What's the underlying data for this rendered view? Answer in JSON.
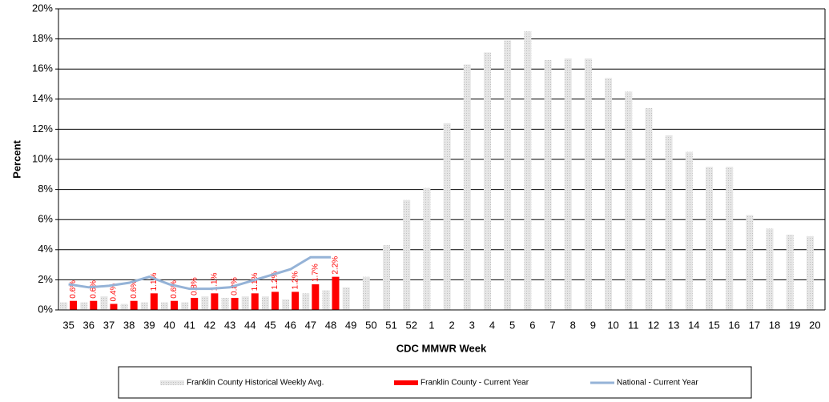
{
  "chart_data": {
    "type": "bar",
    "x_label": "CDC MMWR Week",
    "y_label": "Percent",
    "categories": [
      "35",
      "36",
      "37",
      "38",
      "39",
      "40",
      "41",
      "42",
      "43",
      "44",
      "45",
      "46",
      "47",
      "48",
      "49",
      "50",
      "51",
      "52",
      "1",
      "2",
      "3",
      "4",
      "5",
      "6",
      "7",
      "8",
      "9",
      "10",
      "11",
      "12",
      "13",
      "14",
      "15",
      "16",
      "17",
      "18",
      "19",
      "20"
    ],
    "series": [
      {
        "name": "Franklin County Historical Weekly Avg.",
        "type": "bar",
        "color": "#d4d4d4",
        "values": [
          0.5,
          0.5,
          0.9,
          0.4,
          0.5,
          0.5,
          0.5,
          0.9,
          0.8,
          0.9,
          0.9,
          0.7,
          1.1,
          1.3,
          1.5,
          2.2,
          4.3,
          7.3,
          8.1,
          12.4,
          16.3,
          17.1,
          17.9,
          18.5,
          16.6,
          16.7,
          16.7,
          15.4,
          14.5,
          13.4,
          11.6,
          10.5,
          9.5,
          9.5,
          6.3,
          5.4,
          5.0,
          4.9
        ]
      },
      {
        "name": "Franklin County - Current Year",
        "type": "bar",
        "color": "#ff0000",
        "values": [
          0.6,
          0.6,
          0.4,
          0.6,
          1.1,
          0.6,
          0.8,
          1.1,
          0.8,
          1.1,
          1.2,
          1.2,
          1.7,
          2.2,
          null,
          null,
          null,
          null,
          null,
          null,
          null,
          null,
          null,
          null,
          null,
          null,
          null,
          null,
          null,
          null,
          null,
          null,
          null,
          null,
          null,
          null,
          null,
          null
        ],
        "value_labels": [
          "0.6%",
          "0.6%",
          "0.4%",
          "0.6%",
          "1.1%",
          "0.6%",
          "0.8%",
          "1.1%",
          "0.8%",
          "1.1%",
          "1.2%",
          "1.2%",
          "1.7%",
          "2.2%",
          null,
          null,
          null,
          null,
          null,
          null,
          null,
          null,
          null,
          null,
          null,
          null,
          null,
          null,
          null,
          null,
          null,
          null,
          null,
          null,
          null,
          null,
          null,
          null
        ]
      },
      {
        "name": "National - Current Year",
        "type": "line",
        "color": "#95b3d7",
        "values": [
          1.7,
          1.5,
          1.6,
          1.8,
          2.2,
          1.7,
          1.4,
          1.4,
          1.5,
          1.9,
          2.3,
          2.7,
          3.5,
          3.5,
          null,
          null,
          null,
          null,
          null,
          null,
          null,
          null,
          null,
          null,
          null,
          null,
          null,
          null,
          null,
          null,
          null,
          null,
          null,
          null,
          null,
          null,
          null,
          null
        ]
      }
    ],
    "ylim": [
      0,
      20
    ],
    "yticks": [
      {
        "value": 0,
        "label": "0%"
      },
      {
        "value": 2,
        "label": "2%"
      },
      {
        "value": 4,
        "label": "4%"
      },
      {
        "value": 6,
        "label": "6%"
      },
      {
        "value": 8,
        "label": "8%"
      },
      {
        "value": 10,
        "label": "10%"
      },
      {
        "value": 12,
        "label": "12%"
      },
      {
        "value": 14,
        "label": "14%"
      },
      {
        "value": 16,
        "label": "16%"
      },
      {
        "value": 18,
        "label": "18%"
      },
      {
        "value": 20,
        "label": "20%"
      }
    ],
    "grid": true
  }
}
